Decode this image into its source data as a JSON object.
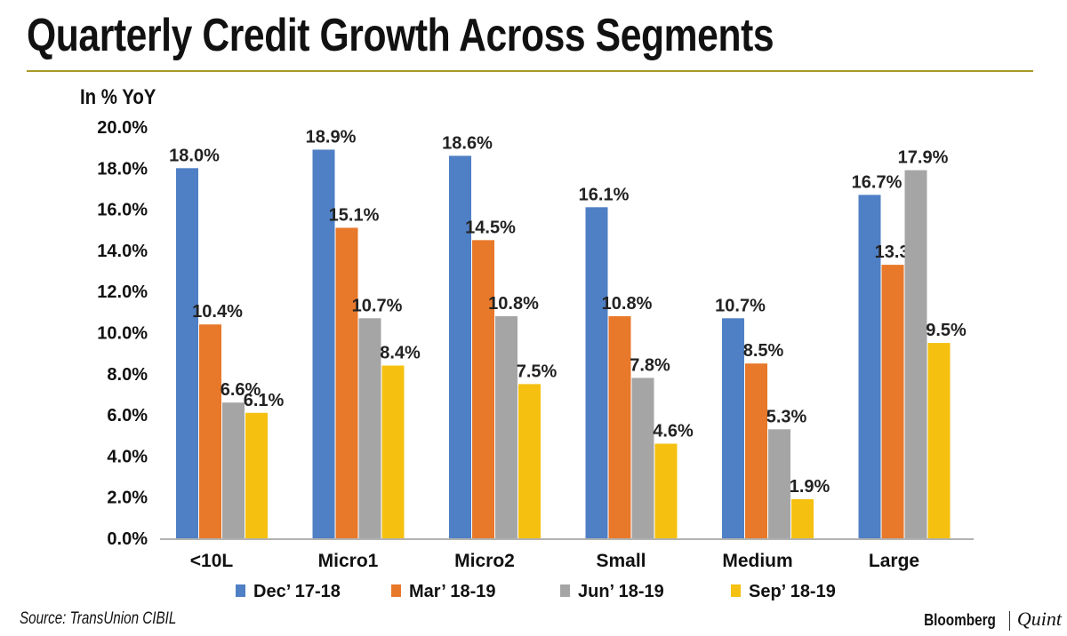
{
  "chart_data": {
    "type": "bar",
    "title": "Quarterly Credit Growth Across Segments",
    "ylabel": "In % YoY",
    "ylim": [
      0,
      20
    ],
    "yticks": [
      "0.0%",
      "2.0%",
      "4.0%",
      "6.0%",
      "8.0%",
      "10.0%",
      "12.0%",
      "14.0%",
      "16.0%",
      "18.0%",
      "20.0%"
    ],
    "categories": [
      "<10L",
      "Micro1",
      "Micro2",
      "Small",
      "Medium",
      "Large"
    ],
    "series": [
      {
        "name": "Dec’ 17-18",
        "color": "#4f7fc4",
        "values": [
          18.0,
          18.9,
          18.6,
          16.1,
          10.7,
          16.7
        ],
        "labels": [
          "18.0%",
          "18.9%",
          "18.6%",
          "16.1%",
          "10.7%",
          "16.7%"
        ]
      },
      {
        "name": "Mar’ 18-19",
        "color": "#e8782a",
        "values": [
          10.4,
          15.1,
          14.5,
          10.8,
          8.5,
          13.3
        ],
        "labels": [
          "10.4%",
          "15.1%",
          "14.5%",
          "10.8%",
          "8.5%",
          "13.3%"
        ]
      },
      {
        "name": "Jun’ 18-19",
        "color": "#a5a5a5",
        "values": [
          6.6,
          10.7,
          10.8,
          7.8,
          5.3,
          17.9
        ],
        "labels": [
          "6.6%",
          "10.7%",
          "10.8%",
          "7.8%",
          "5.3%",
          "17.9%"
        ]
      },
      {
        "name": "Sep’ 18-19",
        "color": "#f5c010",
        "values": [
          6.1,
          8.4,
          7.5,
          4.6,
          1.9,
          9.5
        ],
        "labels": [
          "6.1%",
          "8.4%",
          "7.5%",
          "4.6%",
          "1.9%",
          "9.5%"
        ]
      }
    ],
    "legend_position": "bottom",
    "grid": false
  },
  "source": "Source: TransUnion CIBIL",
  "logo": {
    "left": "Bloomberg",
    "right": "Quint"
  }
}
